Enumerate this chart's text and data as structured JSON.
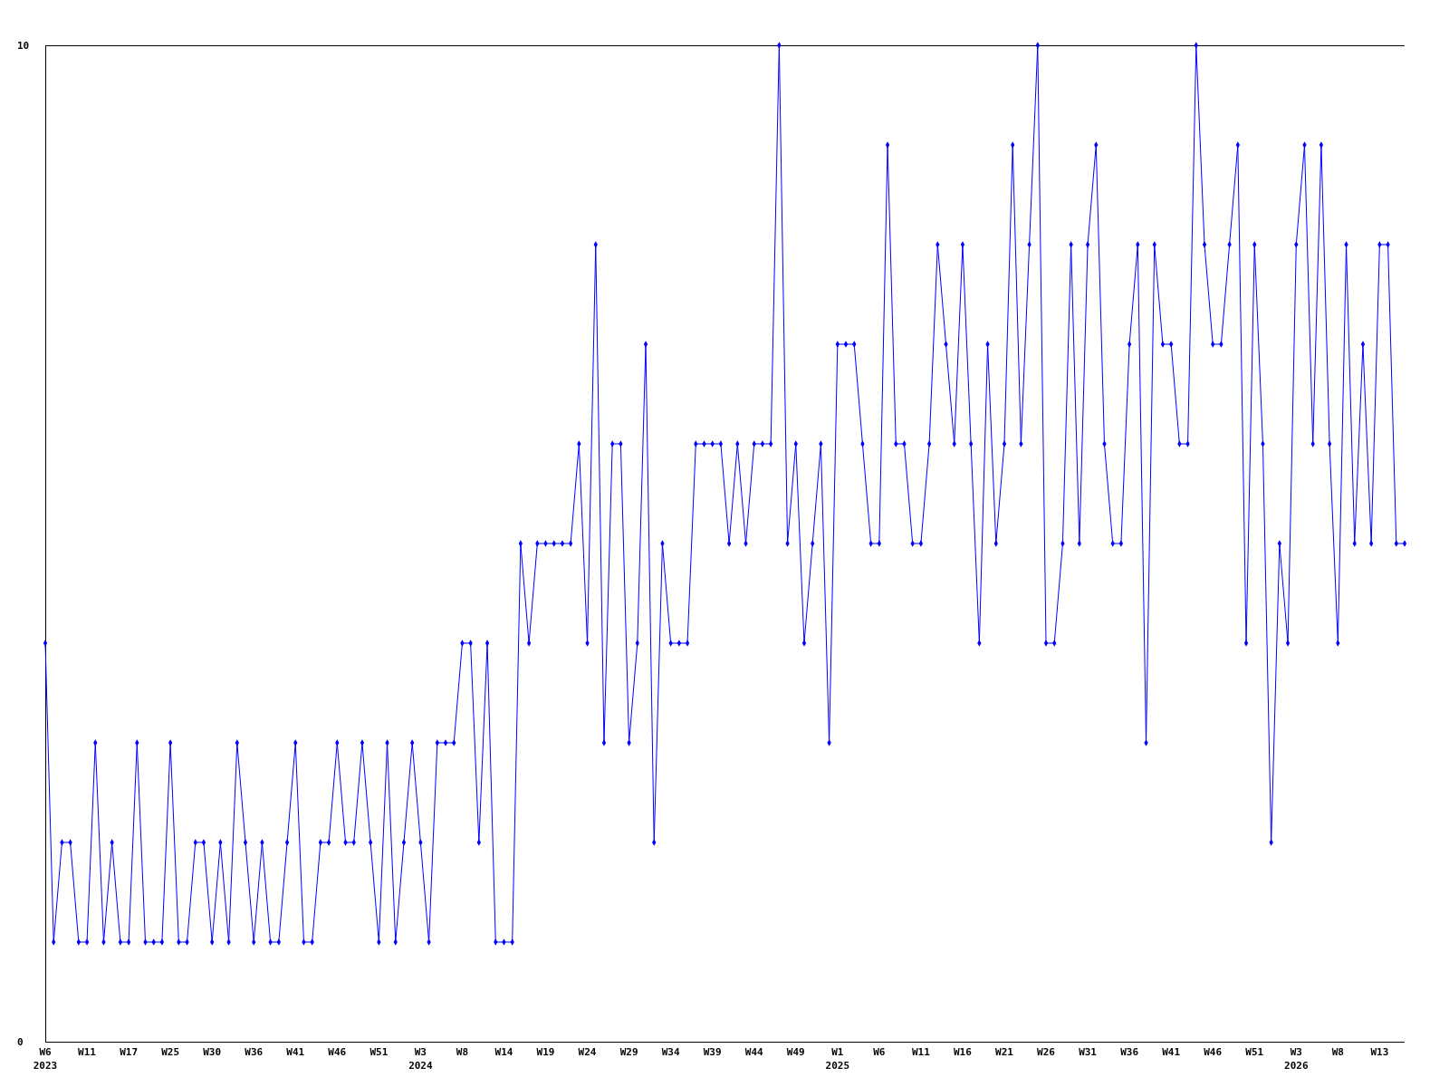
{
  "chart_data": {
    "type": "line",
    "marker": "diamond",
    "color": "#0000ff",
    "ylim": [
      0,
      10
    ],
    "yticks": [
      0,
      10
    ],
    "categories": [
      "W6\n2023",
      null,
      null,
      null,
      null,
      "W11",
      null,
      null,
      null,
      null,
      "W17",
      null,
      null,
      null,
      null,
      "W25",
      null,
      null,
      null,
      null,
      "W30",
      null,
      null,
      null,
      null,
      "W36",
      null,
      null,
      null,
      null,
      "W41",
      null,
      null,
      null,
      null,
      "W46",
      null,
      null,
      null,
      null,
      "W51",
      null,
      null,
      null,
      null,
      "W3\n2024",
      null,
      null,
      null,
      null,
      "W8",
      null,
      null,
      null,
      null,
      "W14",
      null,
      null,
      null,
      null,
      "W19",
      null,
      null,
      null,
      null,
      "W24",
      null,
      null,
      null,
      null,
      "W29",
      null,
      null,
      null,
      null,
      "W34",
      null,
      null,
      null,
      null,
      "W39",
      null,
      null,
      null,
      null,
      "W44",
      null,
      null,
      null,
      null,
      "W49",
      null,
      null,
      null,
      null,
      "W1\n2025",
      null,
      null,
      null,
      null,
      "W6",
      null,
      null,
      null,
      null,
      "W11",
      null,
      null,
      null,
      null,
      "W16",
      null,
      null,
      null,
      null,
      "W21",
      null,
      null,
      null,
      null,
      "W26",
      null,
      null,
      null,
      null,
      "W31",
      null,
      null,
      null,
      null,
      "W36",
      null,
      null,
      null,
      null,
      "W41",
      null,
      null,
      null,
      null,
      "W46",
      null,
      null,
      null,
      null,
      "W51",
      null,
      null,
      null,
      null,
      "W3\n2026",
      null,
      null,
      null,
      null,
      "W8",
      null,
      null,
      null,
      null,
      "W13",
      null,
      null,
      null
    ],
    "values": [
      4,
      1,
      2,
      2,
      1,
      1,
      3,
      1,
      2,
      1,
      1,
      3,
      1,
      1,
      1,
      3,
      1,
      1,
      2,
      2,
      1,
      2,
      1,
      3,
      2,
      1,
      2,
      1,
      1,
      2,
      3,
      1,
      1,
      2,
      2,
      3,
      2,
      2,
      3,
      2,
      1,
      3,
      1,
      2,
      3,
      2,
      1,
      3,
      3,
      3,
      4,
      4,
      2,
      4,
      1,
      1,
      1,
      5,
      4,
      5,
      5,
      5,
      5,
      5,
      6,
      4,
      8,
      3,
      6,
      6,
      3,
      4,
      7,
      2,
      5,
      4,
      4,
      4,
      6,
      6,
      6,
      6,
      5,
      6,
      5,
      6,
      6,
      6,
      10,
      5,
      6,
      4,
      5,
      6,
      3,
      7,
      7,
      7,
      6,
      5,
      5,
      9,
      6,
      6,
      5,
      5,
      6,
      8,
      7,
      6,
      8,
      6,
      4,
      7,
      5,
      6,
      9,
      6,
      8,
      10,
      4,
      4,
      5,
      8,
      5,
      8,
      9,
      6,
      5,
      5,
      7,
      8,
      3,
      8,
      7,
      7,
      6,
      6,
      10,
      8,
      7,
      7,
      8,
      9,
      4,
      8,
      6,
      2,
      5,
      4,
      8,
      9,
      6,
      9,
      6,
      4,
      8,
      5,
      7,
      5,
      8,
      8,
      5,
      5
    ]
  }
}
